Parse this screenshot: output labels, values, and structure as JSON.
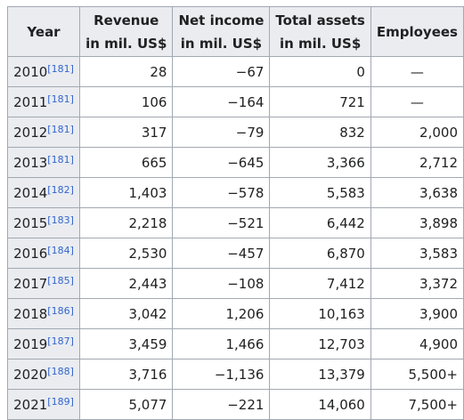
{
  "table": {
    "headers": {
      "year": "Year",
      "revenue": [
        "Revenue",
        "in mil. US$"
      ],
      "net_income": [
        "Net income",
        "in mil. US$"
      ],
      "total_assets": [
        "Total assets",
        "in mil. US$"
      ],
      "employees": "Employees"
    },
    "rows": [
      {
        "year": "2010",
        "ref": "[181]",
        "revenue": "28",
        "net_income": "−67",
        "total_assets": "0",
        "employees": "—"
      },
      {
        "year": "2011",
        "ref": "[181]",
        "revenue": "106",
        "net_income": "−164",
        "total_assets": "721",
        "employees": "—"
      },
      {
        "year": "2012",
        "ref": "[181]",
        "revenue": "317",
        "net_income": "−79",
        "total_assets": "832",
        "employees": "2,000"
      },
      {
        "year": "2013",
        "ref": "[181]",
        "revenue": "665",
        "net_income": "−645",
        "total_assets": "3,366",
        "employees": "2,712"
      },
      {
        "year": "2014",
        "ref": "[182]",
        "revenue": "1,403",
        "net_income": "−578",
        "total_assets": "5,583",
        "employees": "3,638"
      },
      {
        "year": "2015",
        "ref": "[183]",
        "revenue": "2,218",
        "net_income": "−521",
        "total_assets": "6,442",
        "employees": "3,898"
      },
      {
        "year": "2016",
        "ref": "[184]",
        "revenue": "2,530",
        "net_income": "−457",
        "total_assets": "6,870",
        "employees": "3,583"
      },
      {
        "year": "2017",
        "ref": "[185]",
        "revenue": "2,443",
        "net_income": "−108",
        "total_assets": "7,412",
        "employees": "3,372"
      },
      {
        "year": "2018",
        "ref": "[186]",
        "revenue": "3,042",
        "net_income": "1,206",
        "total_assets": "10,163",
        "employees": "3,900"
      },
      {
        "year": "2019",
        "ref": "[187]",
        "revenue": "3,459",
        "net_income": "1,466",
        "total_assets": "12,703",
        "employees": "4,900"
      },
      {
        "year": "2020",
        "ref": "[188]",
        "revenue": "3,716",
        "net_income": "−1,136",
        "total_assets": "13,379",
        "employees": "5,500+"
      },
      {
        "year": "2021",
        "ref": "[189]",
        "revenue": "5,077",
        "net_income": "−221",
        "total_assets": "14,060",
        "employees": "7,500+"
      }
    ]
  }
}
